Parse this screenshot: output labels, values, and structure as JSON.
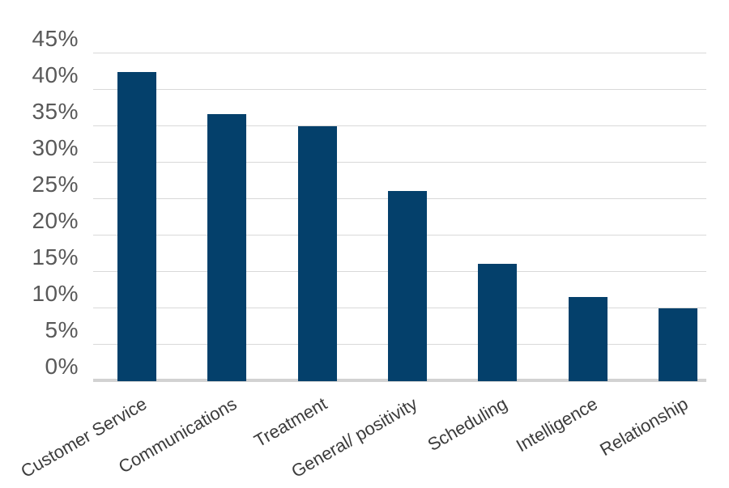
{
  "chart_data": {
    "type": "bar",
    "categories": [
      "Customer Service",
      "Communications",
      "Treatment",
      "General/ positivity",
      "Scheduling",
      "Intelligence",
      "Relationship"
    ],
    "values": [
      42.5,
      36.7,
      35,
      26.1,
      16.1,
      11.6,
      10
    ],
    "series_name": "",
    "title": "",
    "xlabel": "",
    "ylabel": "",
    "ylim": [
      0,
      45
    ],
    "y_tick_step": 5,
    "y_tick_labels": [
      "45%",
      "40%",
      "35%",
      "30%",
      "25%",
      "20%",
      "15%",
      "10%",
      "5%",
      "0%"
    ],
    "grid": true,
    "legend": false,
    "colors": {
      "bar_fill": "#04406b",
      "gridline": "#d9d9d9",
      "axis_baseline": "#d2d2d2",
      "y_tick_text": "#595959",
      "x_label_text": "#3c3c3c",
      "background": "#ffffff"
    }
  }
}
